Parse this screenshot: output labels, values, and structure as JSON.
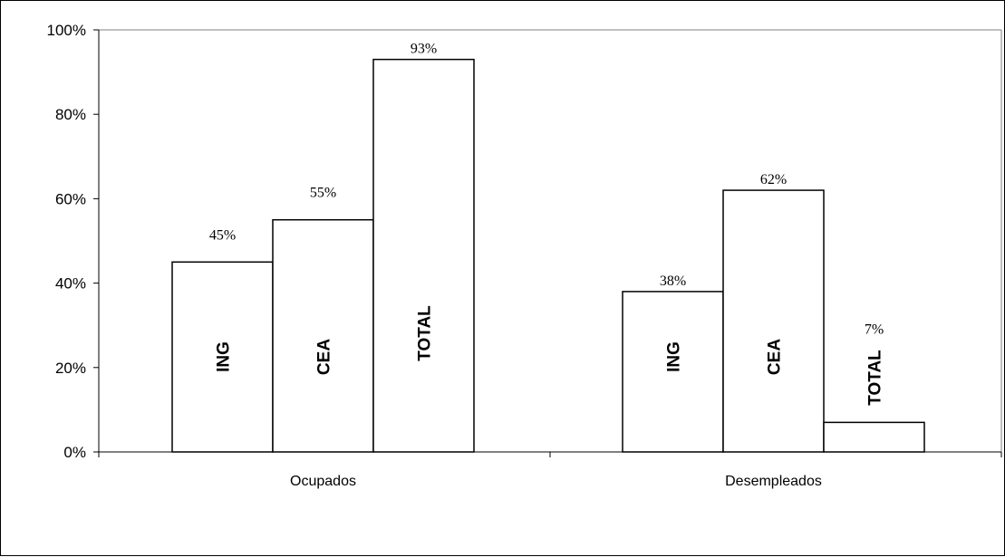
{
  "chart_data": {
    "type": "bar",
    "categories": [
      "Ocupados",
      "Desempleados"
    ],
    "series": [
      {
        "name": "ING",
        "values": [
          45,
          38
        ]
      },
      {
        "name": "CEA",
        "values": [
          55,
          62
        ]
      },
      {
        "name": "TOTAL",
        "values": [
          93,
          7
        ]
      }
    ],
    "data_labels": [
      [
        "45%",
        "38%"
      ],
      [
        "55%",
        "62%"
      ],
      [
        "93%",
        "7%"
      ]
    ],
    "y_ticks": [
      0,
      20,
      40,
      60,
      80,
      100
    ],
    "y_tick_labels": [
      "0%",
      "20%",
      "40%",
      "60%",
      "80%",
      "100%"
    ],
    "ylim": [
      0,
      100
    ],
    "title": "",
    "xlabel": "",
    "ylabel": "",
    "grid": false,
    "legend": "none",
    "bar_fill": "#ffffff",
    "bar_stroke": "#000000"
  }
}
